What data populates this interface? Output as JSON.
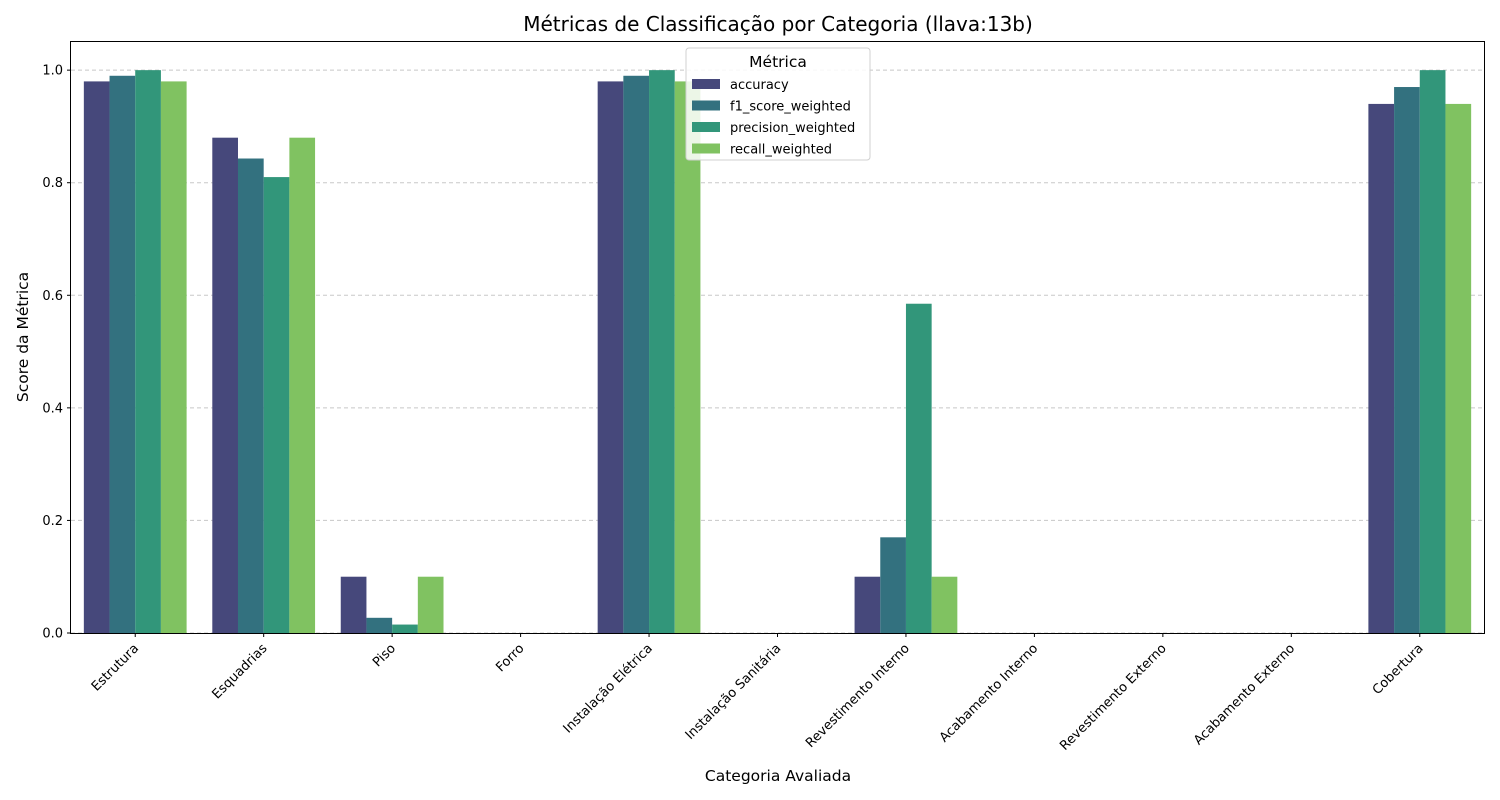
{
  "chart_data": {
    "type": "bar",
    "title": "Métricas de Classificação por Categoria (llava:13b)",
    "xlabel": "Categoria Avaliada",
    "ylabel": "Score da Métrica",
    "ylim": [
      0,
      1.05
    ],
    "yticks": [
      0.0,
      0.2,
      0.4,
      0.6,
      0.8,
      1.0
    ],
    "ytick_labels": [
      "0.0",
      "0.2",
      "0.4",
      "0.6",
      "0.8",
      "1.0"
    ],
    "grid": "y-dashed",
    "legend": {
      "title": "Métrica",
      "placement": "top-center"
    },
    "categories": [
      "Estrutura",
      "Esquadrias",
      "Piso",
      "Forro",
      "Instalação Elétrica",
      "Instalação Sanitária",
      "Revestimento Interno",
      "Acabamento Interno",
      "Revestimento Externo",
      "Acabamento Externo",
      "Cobertura"
    ],
    "series": [
      {
        "name": "accuracy",
        "color": "#46487b",
        "values": [
          0.98,
          0.88,
          0.1,
          0,
          0.98,
          0,
          0.1,
          0,
          0,
          0,
          0.94
        ]
      },
      {
        "name": "f1_score_weighted",
        "color": "#33717f",
        "values": [
          0.99,
          0.843,
          0.027,
          0,
          0.99,
          0,
          0.17,
          0,
          0,
          0,
          0.97
        ]
      },
      {
        "name": "precision_weighted",
        "color": "#32967a",
        "values": [
          1.0,
          0.81,
          0.015,
          0,
          1.0,
          0,
          0.585,
          0,
          0,
          0,
          1.0
        ]
      },
      {
        "name": "recall_weighted",
        "color": "#80c261",
        "values": [
          0.98,
          0.88,
          0.1,
          0,
          0.98,
          0,
          0.1,
          0,
          0,
          0,
          0.94
        ]
      }
    ]
  }
}
